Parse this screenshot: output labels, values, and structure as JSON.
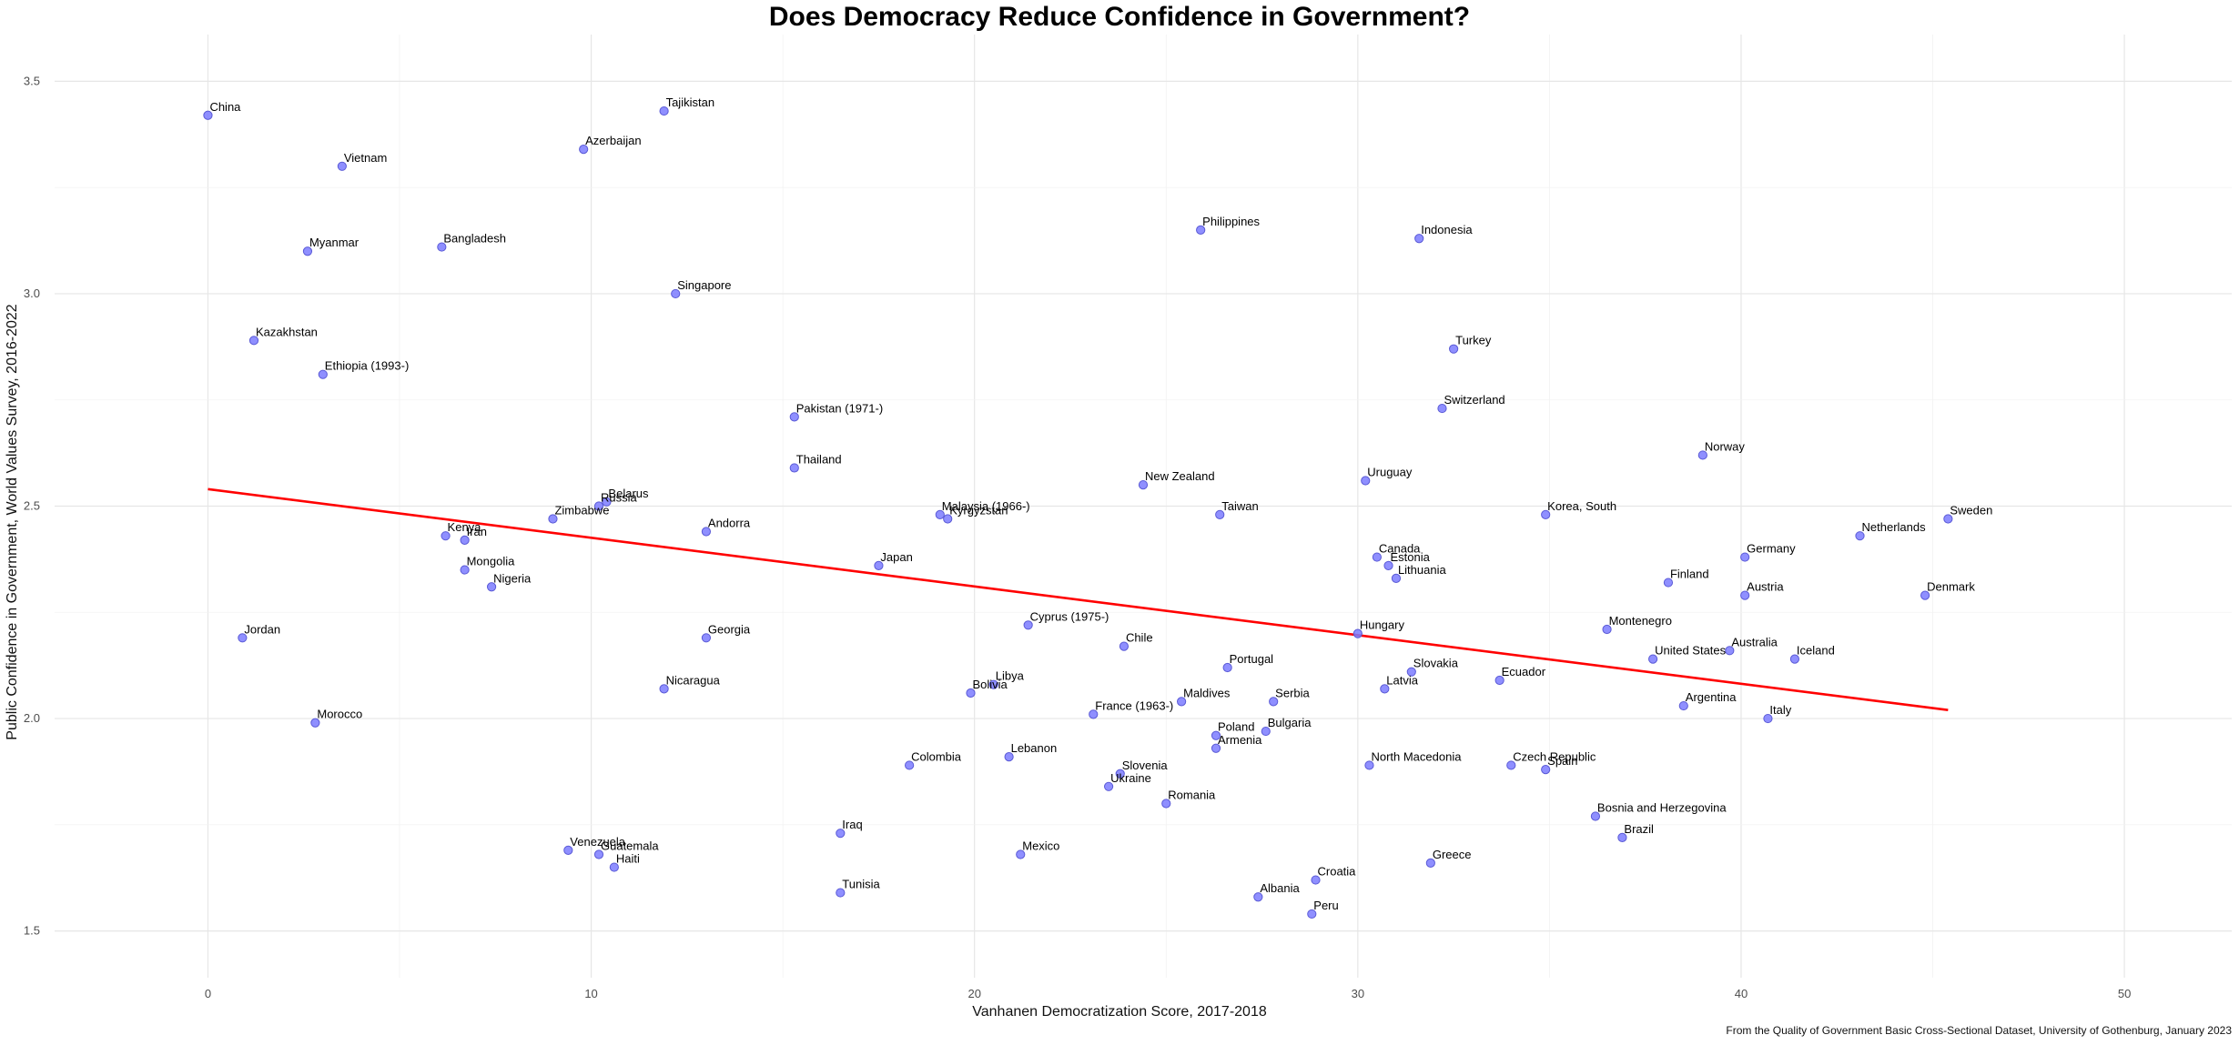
{
  "chart_data": {
    "type": "scatter",
    "title": "Does Democracy Reduce Confidence in Government?",
    "xlabel": "Vanhanen Democratization Score, 2017-2018",
    "ylabel": "Public Confidence in Government, World Values Survey, 2016-2022",
    "caption": "From the Quality of Government Basic Cross-Sectional Dataset, University of Gothenburg, January 2023",
    "xlim": [
      -4,
      52.8
    ],
    "ylim": [
      1.39,
      3.61
    ],
    "x_ticks": [
      0,
      10,
      20,
      30,
      40,
      50
    ],
    "y_ticks": [
      1.5,
      2.0,
      2.5,
      3.0,
      3.5
    ],
    "grid": true,
    "point_color": "#7b7bff",
    "trend_color": "#ff0000",
    "trend_line": {
      "x": [
        0,
        45.4
      ],
      "y": [
        2.54,
        2.02
      ]
    },
    "points": [
      {
        "label": "China",
        "x": 0.0,
        "y": 3.42
      },
      {
        "label": "Vietnam",
        "x": 3.5,
        "y": 3.3
      },
      {
        "label": "Myanmar",
        "x": 2.6,
        "y": 3.1
      },
      {
        "label": "Kazakhstan",
        "x": 1.2,
        "y": 2.89
      },
      {
        "label": "Ethiopia (1993-)",
        "x": 3.0,
        "y": 2.81
      },
      {
        "label": "Jordan",
        "x": 0.9,
        "y": 2.19
      },
      {
        "label": "Morocco",
        "x": 2.8,
        "y": 1.99
      },
      {
        "label": "Tajikistan",
        "x": 11.9,
        "y": 3.43
      },
      {
        "label": "Azerbaijan",
        "x": 9.8,
        "y": 3.34
      },
      {
        "label": "Bangladesh",
        "x": 6.1,
        "y": 3.11
      },
      {
        "label": "Singapore",
        "x": 12.2,
        "y": 3.0
      },
      {
        "label": "Belarus",
        "x": 10.4,
        "y": 2.51
      },
      {
        "label": "Russia",
        "x": 10.2,
        "y": 2.5
      },
      {
        "label": "Zimbabwe",
        "x": 9.0,
        "y": 2.47
      },
      {
        "label": "Kenya",
        "x": 6.2,
        "y": 2.43
      },
      {
        "label": "Iran",
        "x": 6.7,
        "y": 2.42
      },
      {
        "label": "Andorra",
        "x": 13.0,
        "y": 2.44
      },
      {
        "label": "Mongolia",
        "x": 6.7,
        "y": 2.35
      },
      {
        "label": "Nigeria",
        "x": 7.4,
        "y": 2.31
      },
      {
        "label": "Georgia",
        "x": 13.0,
        "y": 2.19
      },
      {
        "label": "Nicaragua",
        "x": 11.9,
        "y": 2.07
      },
      {
        "label": "Venezuela",
        "x": 9.4,
        "y": 1.69
      },
      {
        "label": "Guatemala",
        "x": 10.2,
        "y": 1.68
      },
      {
        "label": "Haiti",
        "x": 10.6,
        "y": 1.65
      },
      {
        "label": "Pakistan (1971-)",
        "x": 15.3,
        "y": 2.71
      },
      {
        "label": "Thailand",
        "x": 15.3,
        "y": 2.59
      },
      {
        "label": "Japan",
        "x": 17.5,
        "y": 2.36
      },
      {
        "label": "Malaysia (1966-)",
        "x": 19.1,
        "y": 2.48
      },
      {
        "label": "Kyrgyzstan",
        "x": 19.3,
        "y": 2.47
      },
      {
        "label": "Colombia",
        "x": 18.3,
        "y": 1.89
      },
      {
        "label": "Iraq",
        "x": 16.5,
        "y": 1.73
      },
      {
        "label": "Tunisia",
        "x": 16.5,
        "y": 1.59
      },
      {
        "label": "Libya",
        "x": 20.5,
        "y": 2.08
      },
      {
        "label": "Bolivia",
        "x": 19.9,
        "y": 2.06
      },
      {
        "label": "Cyprus (1975-)",
        "x": 21.4,
        "y": 2.22
      },
      {
        "label": "Lebanon",
        "x": 20.9,
        "y": 1.91
      },
      {
        "label": "Mexico",
        "x": 21.2,
        "y": 1.68
      },
      {
        "label": "Philippines",
        "x": 25.9,
        "y": 3.15
      },
      {
        "label": "New Zealand",
        "x": 24.4,
        "y": 2.55
      },
      {
        "label": "Taiwan",
        "x": 26.4,
        "y": 2.48
      },
      {
        "label": "Chile",
        "x": 23.9,
        "y": 2.17
      },
      {
        "label": "Portugal",
        "x": 26.6,
        "y": 2.12
      },
      {
        "label": "France (1963-)",
        "x": 23.1,
        "y": 2.01
      },
      {
        "label": "Maldives",
        "x": 25.4,
        "y": 2.04
      },
      {
        "label": "Serbia",
        "x": 27.8,
        "y": 2.04
      },
      {
        "label": "Bulgaria",
        "x": 27.6,
        "y": 1.97
      },
      {
        "label": "Poland",
        "x": 26.3,
        "y": 1.96
      },
      {
        "label": "Armenia",
        "x": 26.3,
        "y": 1.93
      },
      {
        "label": "Slovenia",
        "x": 23.8,
        "y": 1.87
      },
      {
        "label": "Ukraine",
        "x": 23.5,
        "y": 1.84
      },
      {
        "label": "Romania",
        "x": 25.0,
        "y": 1.8
      },
      {
        "label": "Albania",
        "x": 27.4,
        "y": 1.58
      },
      {
        "label": "Croatia",
        "x": 28.9,
        "y": 1.62
      },
      {
        "label": "Peru",
        "x": 28.8,
        "y": 1.54
      },
      {
        "label": "Indonesia",
        "x": 31.6,
        "y": 3.13
      },
      {
        "label": "Turkey",
        "x": 32.5,
        "y": 2.87
      },
      {
        "label": "Switzerland",
        "x": 32.2,
        "y": 2.73
      },
      {
        "label": "Uruguay",
        "x": 30.2,
        "y": 2.56
      },
      {
        "label": "Canada",
        "x": 30.5,
        "y": 2.38
      },
      {
        "label": "Estonia",
        "x": 30.8,
        "y": 2.36
      },
      {
        "label": "Lithuania",
        "x": 31.0,
        "y": 2.33
      },
      {
        "label": "Hungary",
        "x": 30.0,
        "y": 2.2
      },
      {
        "label": "Slovakia",
        "x": 31.4,
        "y": 2.11
      },
      {
        "label": "Latvia",
        "x": 30.7,
        "y": 2.07
      },
      {
        "label": "North Macedonia",
        "x": 30.3,
        "y": 1.89
      },
      {
        "label": "Greece",
        "x": 31.9,
        "y": 1.66
      },
      {
        "label": "Korea, South",
        "x": 34.9,
        "y": 2.48
      },
      {
        "label": "Ecuador",
        "x": 33.7,
        "y": 2.09
      },
      {
        "label": "Czech Republic",
        "x": 34.0,
        "y": 1.89
      },
      {
        "label": "Spain",
        "x": 34.9,
        "y": 1.88
      },
      {
        "label": "Montenegro",
        "x": 36.5,
        "y": 2.21
      },
      {
        "label": "Bosnia and Herzegovina",
        "x": 36.2,
        "y": 1.77
      },
      {
        "label": "Brazil",
        "x": 36.9,
        "y": 1.72
      },
      {
        "label": "Norway",
        "x": 39.0,
        "y": 2.62
      },
      {
        "label": "Finland",
        "x": 38.1,
        "y": 2.32
      },
      {
        "label": "United States",
        "x": 37.7,
        "y": 2.14
      },
      {
        "label": "Argentina",
        "x": 38.5,
        "y": 2.03
      },
      {
        "label": "Germany",
        "x": 40.1,
        "y": 2.38
      },
      {
        "label": "Austria",
        "x": 40.1,
        "y": 2.29
      },
      {
        "label": "Australia",
        "x": 39.7,
        "y": 2.16
      },
      {
        "label": "Italy",
        "x": 40.7,
        "y": 2.0
      },
      {
        "label": "Iceland",
        "x": 41.4,
        "y": 2.14
      },
      {
        "label": "Netherlands",
        "x": 43.1,
        "y": 2.43
      },
      {
        "label": "Sweden",
        "x": 45.4,
        "y": 2.47
      },
      {
        "label": "Denmark",
        "x": 44.8,
        "y": 2.29
      }
    ]
  }
}
